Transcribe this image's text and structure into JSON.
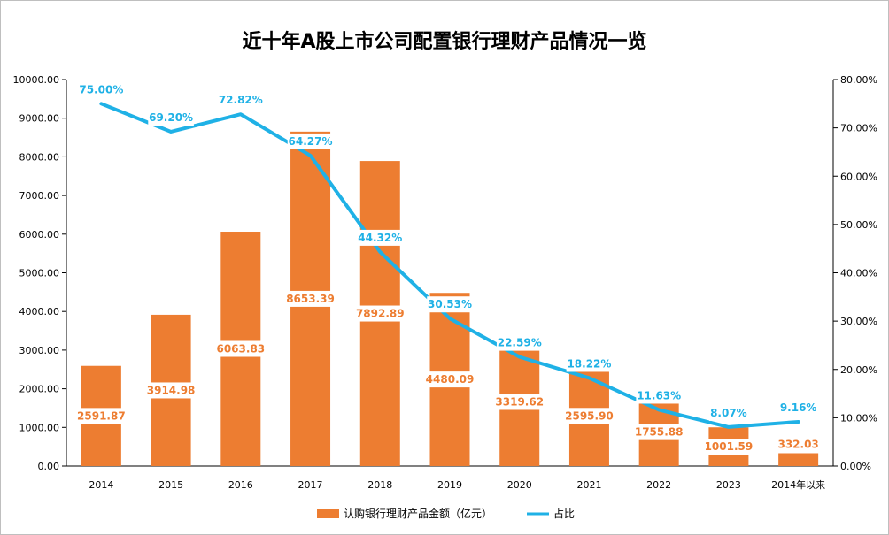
{
  "chart_data": {
    "type": "bar",
    "title": "近十年A股上市公司配置银行理财产品情况一览",
    "categories": [
      "2014",
      "2015",
      "2016",
      "2017",
      "2018",
      "2019",
      "2020",
      "2021",
      "2022",
      "2023",
      "2014年以来"
    ],
    "series": [
      {
        "name": "认购银行理财产品金额（亿元）",
        "type": "bar",
        "axis": "left",
        "color": "#ED7D31",
        "values": [
          2591.87,
          3914.98,
          6063.83,
          8653.39,
          7892.89,
          4480.09,
          3319.62,
          2595.9,
          1755.88,
          1001.59,
          332.03
        ],
        "labels": [
          "2591.87",
          "3914.98",
          "6063.83",
          "8653.39",
          "7892.89",
          "4480.09",
          "3319.62",
          "2595.90",
          "1755.88",
          "1001.59",
          "332.03"
        ]
      },
      {
        "name": "占比",
        "type": "line",
        "axis": "right",
        "color": "#1FB1E6",
        "values": [
          75.0,
          69.2,
          72.82,
          64.27,
          44.32,
          30.53,
          22.59,
          18.22,
          11.63,
          8.07,
          9.16
        ],
        "labels": [
          "75.00%",
          "69.20%",
          "72.82%",
          "64.27%",
          "44.32%",
          "30.53%",
          "22.59%",
          "18.22%",
          "11.63%",
          "8.07%",
          "9.16%"
        ]
      }
    ],
    "y_left": {
      "ylim": [
        0,
        10000
      ],
      "ticks": [
        "0.00",
        "1000.00",
        "2000.00",
        "3000.00",
        "4000.00",
        "5000.00",
        "6000.00",
        "7000.00",
        "8000.00",
        "9000.00",
        "10000.00"
      ]
    },
    "y_right": {
      "ylim": [
        0,
        80
      ],
      "ticks": [
        "0.00%",
        "10.00%",
        "20.00%",
        "30.00%",
        "40.00%",
        "50.00%",
        "60.00%",
        "70.00%",
        "80.00%"
      ]
    },
    "grid": false,
    "legend_position": "bottom"
  }
}
